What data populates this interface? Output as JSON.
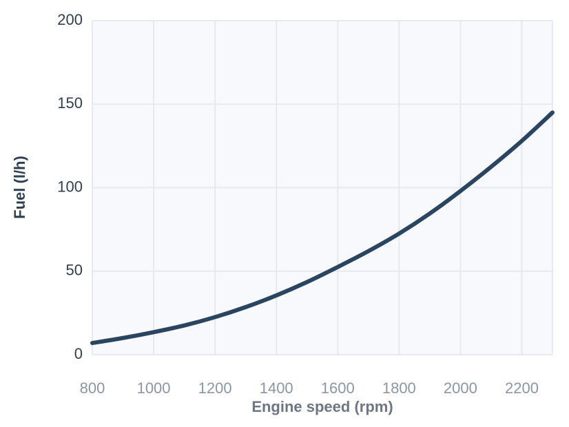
{
  "chart_data": {
    "type": "line",
    "xlabel": "Engine speed (rpm)",
    "ylabel": "Fuel (l/h)",
    "xlim": [
      800,
      2300
    ],
    "ylim": [
      0,
      200
    ],
    "x_ticks": [
      800,
      1000,
      1200,
      1400,
      1600,
      1800,
      2000,
      2200
    ],
    "y_ticks": [
      0,
      50,
      100,
      150,
      200
    ],
    "grid": true,
    "series": [
      {
        "color": "#2a4560",
        "x": [
          800,
          900,
          1000,
          1100,
          1200,
          1300,
          1400,
          1500,
          1600,
          1700,
          1800,
          1900,
          2000,
          2100,
          2200,
          2300
        ],
        "y": [
          7,
          10,
          13.5,
          17.5,
          22.5,
          28.5,
          35.5,
          43.5,
          52.5,
          62,
          72.5,
          84.5,
          98,
          112.5,
          128,
          145
        ]
      }
    ]
  }
}
